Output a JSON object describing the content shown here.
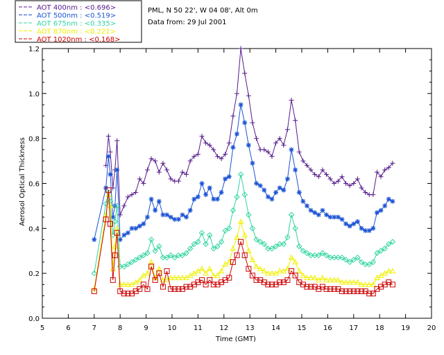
{
  "header": {
    "location": "PML, N 50 22', W 04 08', Alt 0m",
    "date_line": "Data from: 29 Jul 2001"
  },
  "chart_data": {
    "type": "line",
    "xlabel": "Time (GMT)",
    "ylabel": "Aerosol Optical Thickness",
    "xlim": [
      5,
      20
    ],
    "ylim": [
      0.0,
      1.2
    ],
    "x_ticks": [
      "5",
      "6",
      "7",
      "8",
      "9",
      "10",
      "11",
      "12",
      "13",
      "14",
      "15",
      "16",
      "17",
      "18",
      "19",
      "20"
    ],
    "y_ticks": [
      "0.0",
      "0.2",
      "0.4",
      "0.6",
      "0.8",
      "1.0",
      "1.2"
    ],
    "x_tick_values": [
      5,
      6,
      7,
      8,
      9,
      10,
      11,
      12,
      13,
      14,
      15,
      16,
      17,
      18,
      19,
      20
    ],
    "y_tick_values": [
      0.0,
      0.2,
      0.4,
      0.6,
      0.8,
      1.0,
      1.2
    ],
    "legend_position": "top-left outside",
    "x": [
      7.0,
      7.45,
      7.55,
      7.62,
      7.72,
      7.8,
      7.88,
      8.0,
      8.15,
      8.3,
      8.45,
      8.6,
      8.75,
      8.9,
      9.05,
      9.2,
      9.35,
      9.5,
      9.65,
      9.8,
      9.95,
      10.1,
      10.25,
      10.4,
      10.55,
      10.7,
      10.85,
      11.0,
      11.15,
      11.3,
      11.45,
      11.6,
      11.75,
      11.9,
      12.05,
      12.2,
      12.35,
      12.5,
      12.65,
      12.8,
      12.95,
      13.1,
      13.25,
      13.4,
      13.55,
      13.7,
      13.85,
      14.0,
      14.15,
      14.3,
      14.45,
      14.6,
      14.75,
      14.9,
      15.05,
      15.2,
      15.35,
      15.5,
      15.65,
      15.8,
      15.95,
      16.1,
      16.25,
      16.4,
      16.55,
      16.7,
      16.85,
      17.0,
      17.15,
      17.3,
      17.45,
      17.6,
      17.75,
      17.9,
      18.05,
      18.2,
      18.35,
      18.5
    ],
    "series": [
      {
        "name": "AOT  400nm : <0.696>",
        "color": "#551a8b",
        "marker": "plus",
        "values": [
          null,
          0.68,
          0.81,
          0.74,
          0.58,
          0.66,
          0.79,
          0.46,
          0.5,
          0.54,
          0.55,
          0.56,
          0.62,
          0.6,
          0.66,
          0.71,
          0.7,
          0.65,
          0.69,
          0.66,
          0.62,
          0.61,
          0.61,
          0.65,
          0.64,
          0.7,
          0.72,
          0.73,
          0.81,
          0.78,
          0.77,
          0.75,
          0.72,
          0.71,
          0.73,
          0.78,
          0.9,
          1.0,
          1.2,
          1.09,
          0.99,
          0.87,
          0.8,
          0.75,
          0.75,
          0.74,
          0.72,
          0.78,
          0.8,
          0.77,
          0.84,
          0.97,
          0.88,
          0.74,
          0.7,
          0.68,
          0.66,
          0.64,
          0.63,
          0.66,
          0.64,
          0.62,
          0.6,
          0.61,
          0.63,
          0.6,
          0.59,
          0.6,
          0.62,
          0.58,
          0.56,
          0.55,
          0.55,
          0.65,
          0.63,
          0.66,
          0.67,
          0.69
        ]
      },
      {
        "name": "AOT  500nm : <0.519>",
        "color": "#1a52d4",
        "marker": "star",
        "values": [
          0.35,
          0.58,
          0.72,
          0.64,
          0.45,
          0.5,
          0.66,
          0.35,
          0.37,
          0.38,
          0.4,
          0.4,
          0.41,
          0.42,
          0.45,
          0.53,
          0.48,
          0.52,
          0.46,
          0.46,
          0.45,
          0.44,
          0.44,
          0.46,
          0.45,
          0.48,
          0.53,
          0.54,
          0.6,
          0.55,
          0.58,
          0.53,
          0.53,
          0.56,
          0.62,
          0.63,
          0.76,
          0.82,
          0.95,
          0.87,
          0.77,
          0.69,
          0.6,
          0.59,
          0.57,
          0.54,
          0.53,
          0.56,
          0.58,
          0.57,
          0.62,
          0.75,
          0.66,
          0.56,
          0.52,
          0.5,
          0.48,
          0.47,
          0.46,
          0.48,
          0.46,
          0.45,
          0.45,
          0.45,
          0.44,
          0.42,
          0.41,
          0.42,
          0.43,
          0.4,
          0.39,
          0.39,
          0.4,
          0.47,
          0.48,
          0.5,
          0.53,
          0.52
        ]
      },
      {
        "name": "AOT  675nm : <0.335>",
        "color": "#2fd4a0",
        "marker": "diamond",
        "values": [
          0.2,
          0.51,
          0.56,
          0.52,
          0.37,
          0.43,
          0.5,
          0.23,
          0.23,
          0.24,
          0.25,
          0.26,
          0.27,
          0.28,
          0.29,
          0.35,
          0.3,
          0.32,
          0.27,
          0.27,
          0.28,
          0.27,
          0.28,
          0.28,
          0.29,
          0.31,
          0.33,
          0.34,
          0.38,
          0.33,
          0.37,
          0.31,
          0.32,
          0.34,
          0.39,
          0.4,
          0.48,
          0.54,
          0.64,
          0.55,
          0.46,
          0.4,
          0.35,
          0.34,
          0.33,
          0.31,
          0.31,
          0.32,
          0.33,
          0.33,
          0.36,
          0.46,
          0.4,
          0.32,
          0.3,
          0.29,
          0.28,
          0.28,
          0.28,
          0.29,
          0.28,
          0.27,
          0.27,
          0.27,
          0.27,
          0.26,
          0.25,
          0.26,
          0.27,
          0.25,
          0.24,
          0.24,
          0.25,
          0.29,
          0.3,
          0.31,
          0.33,
          0.34
        ]
      },
      {
        "name": "AOT  870nm : <0.221>",
        "color": "#f0f000",
        "marker": "triangle",
        "values": [
          0.13,
          0.46,
          0.55,
          0.5,
          0.22,
          0.32,
          0.4,
          0.15,
          0.15,
          0.15,
          0.15,
          0.16,
          0.17,
          0.19,
          0.2,
          0.25,
          0.18,
          0.22,
          0.17,
          0.17,
          0.18,
          0.18,
          0.18,
          0.18,
          0.18,
          0.19,
          0.2,
          0.21,
          0.22,
          0.2,
          0.22,
          0.19,
          0.19,
          0.21,
          0.24,
          0.25,
          0.31,
          0.36,
          0.43,
          0.37,
          0.3,
          0.26,
          0.23,
          0.22,
          0.21,
          0.2,
          0.2,
          0.2,
          0.21,
          0.21,
          0.22,
          0.27,
          0.25,
          0.21,
          0.19,
          0.18,
          0.18,
          0.18,
          0.17,
          0.18,
          0.17,
          0.17,
          0.17,
          0.17,
          0.16,
          0.16,
          0.16,
          0.16,
          0.16,
          0.15,
          0.15,
          0.15,
          0.15,
          0.18,
          0.19,
          0.2,
          0.21,
          0.21
        ]
      },
      {
        "name": "AOT 1020nm : <0.168>",
        "color": "#cc0000",
        "marker": "square",
        "values": [
          0.12,
          0.44,
          0.57,
          0.42,
          0.17,
          0.28,
          0.38,
          0.12,
          0.11,
          0.11,
          0.11,
          0.12,
          0.13,
          0.15,
          0.13,
          0.23,
          0.17,
          0.2,
          0.14,
          0.21,
          0.13,
          0.13,
          0.13,
          0.13,
          0.14,
          0.14,
          0.15,
          0.16,
          0.17,
          0.15,
          0.17,
          0.15,
          0.15,
          0.16,
          0.17,
          0.18,
          0.25,
          0.28,
          0.34,
          0.28,
          0.22,
          0.19,
          0.17,
          0.17,
          0.16,
          0.15,
          0.15,
          0.15,
          0.16,
          0.16,
          0.17,
          0.21,
          0.19,
          0.16,
          0.15,
          0.14,
          0.14,
          0.14,
          0.13,
          0.14,
          0.13,
          0.13,
          0.13,
          0.13,
          0.12,
          0.12,
          0.12,
          0.12,
          0.12,
          0.12,
          0.12,
          0.11,
          0.11,
          0.13,
          0.14,
          0.15,
          0.16,
          0.15
        ]
      }
    ]
  }
}
